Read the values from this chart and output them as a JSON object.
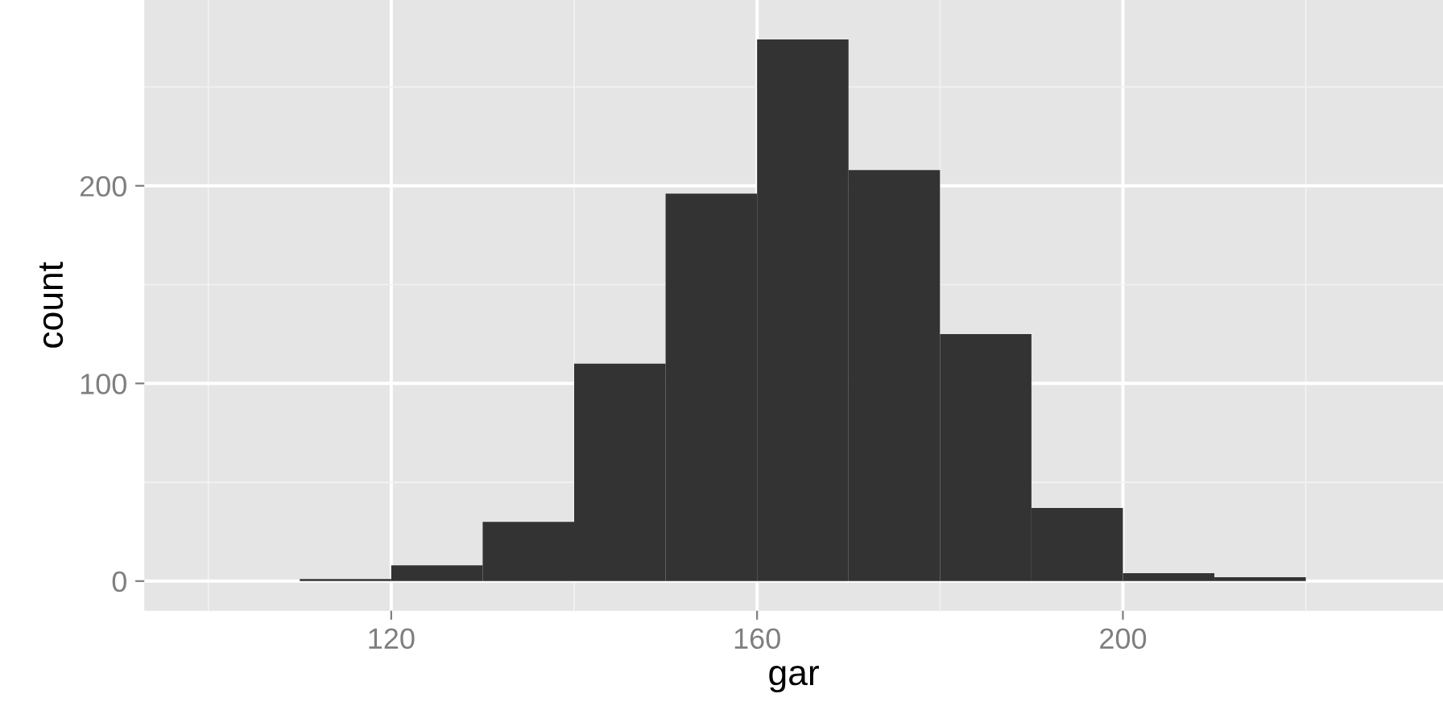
{
  "chart_data": {
    "type": "histogram",
    "xlabel": "gar",
    "ylabel": "count",
    "bins": [
      110,
      120,
      130,
      140,
      150,
      160,
      170,
      180,
      190,
      200,
      210,
      220
    ],
    "values": [
      1,
      8,
      30,
      110,
      196,
      274,
      208,
      125,
      37,
      4,
      2
    ],
    "color": "#333333",
    "xlim": [
      93,
      235
    ],
    "ylim": [
      -15,
      294
    ],
    "xticks": [
      120,
      160,
      200
    ],
    "yticks": [
      0,
      100,
      200
    ],
    "grid": true
  }
}
